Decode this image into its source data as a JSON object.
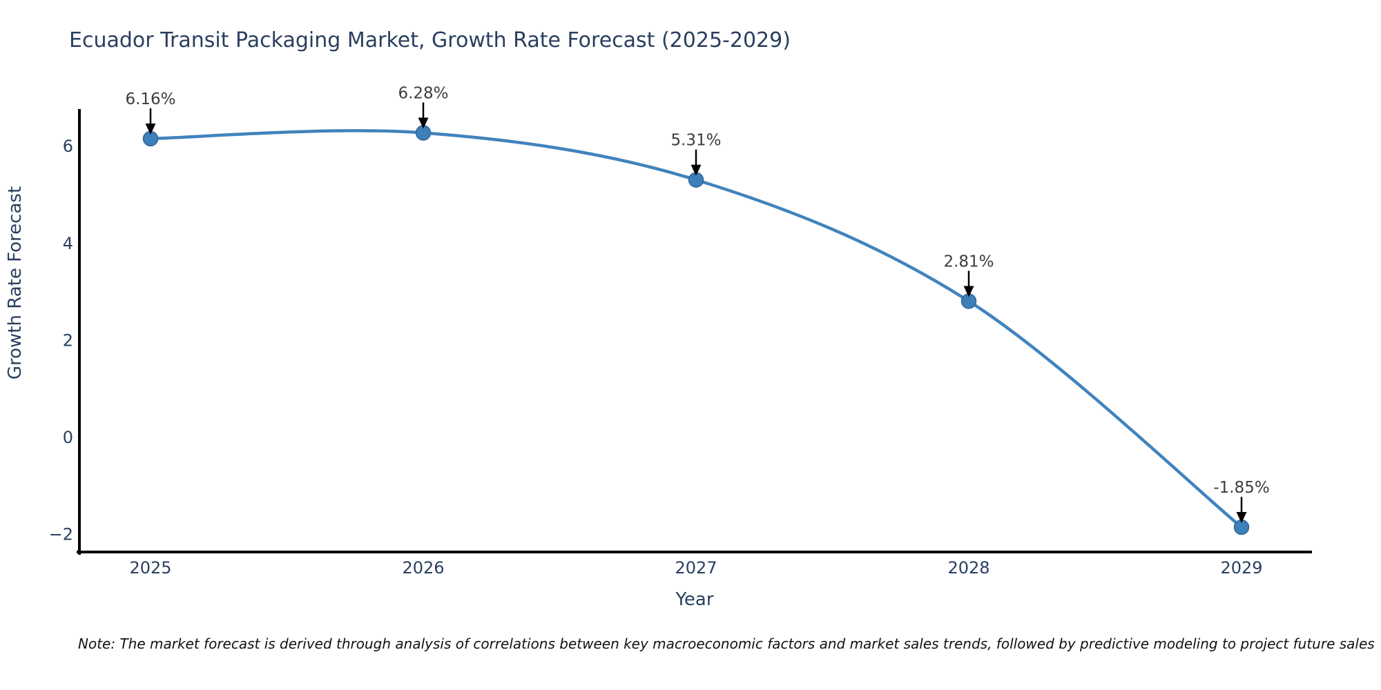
{
  "chart_data": {
    "type": "line",
    "title": "Ecuador Transit Packaging Market, Growth Rate Forecast (2025-2029)",
    "xlabel": "Year",
    "ylabel": "Growth Rate Forecast",
    "x": [
      2025,
      2026,
      2027,
      2028,
      2029
    ],
    "values": [
      6.16,
      6.28,
      5.31,
      2.81,
      -1.85
    ],
    "point_labels": [
      "6.16%",
      "6.28%",
      "5.31%",
      "2.81%",
      "-1.85%"
    ],
    "series_name": "Growth Rate Forecast",
    "yticks": [
      6,
      4,
      2,
      0,
      -2
    ],
    "xticks": [
      "2025",
      "2026",
      "2027",
      "2028",
      "2029"
    ],
    "xlim": [
      2024.73,
      2029.26
    ],
    "ylim": [
      -2.36,
      6.74
    ],
    "grid": false,
    "legend": "none",
    "line_style": "spline",
    "marker_size": 21,
    "colors": {
      "line": "#4083bd",
      "marker": "#3d7fb8",
      "marker_edge": "#2f6699",
      "arrow": "#000000",
      "labels": "#2a3f5f",
      "annotation_text": "#3d3d3d",
      "note_text": "#111111",
      "axis": "#000000",
      "background": "#ffffff"
    }
  },
  "note": {
    "text": "Note: The market forecast is derived through analysis of correlations between key macroeconomic factors and market sales trends, followed by predictive modeling to project future sales"
  }
}
